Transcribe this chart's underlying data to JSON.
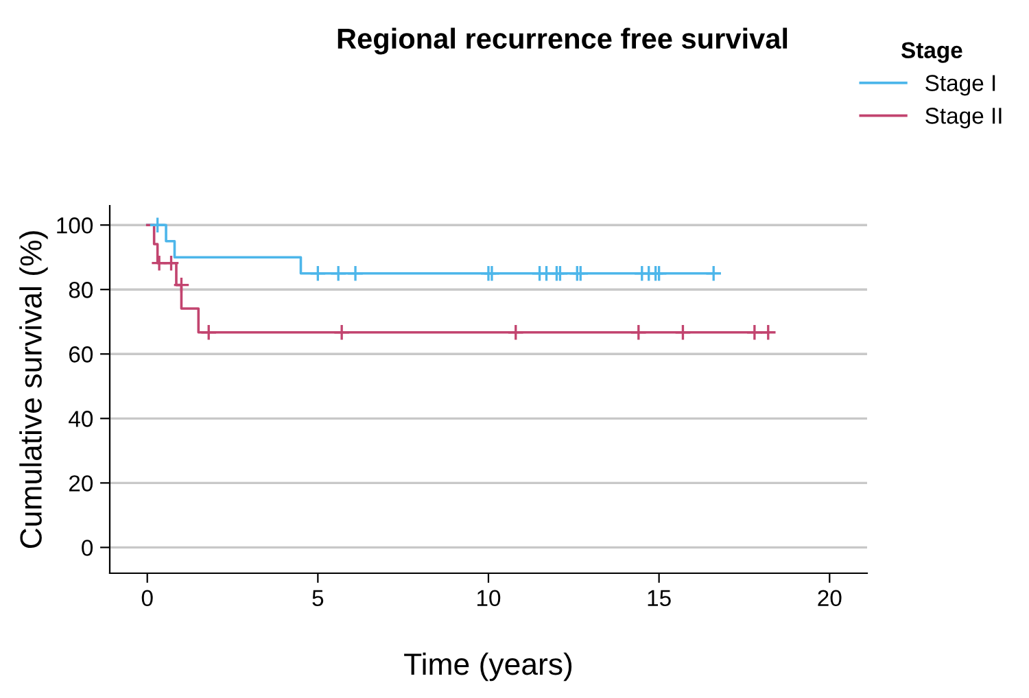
{
  "chart_data": {
    "type": "step",
    "title": "Regional recurrence free survival",
    "xlabel": "Time (years)",
    "ylabel": "Cumulative survival (%)",
    "legend_title": "Stage",
    "legend": "top right",
    "grid": "y",
    "xlim": [
      -1.1,
      21.1
    ],
    "ylim": [
      -8,
      106
    ],
    "xticks": [
      0,
      5,
      10,
      15,
      20
    ],
    "yticks": [
      0,
      20,
      40,
      60,
      80,
      100
    ],
    "series": [
      {
        "name": "Stage I",
        "color": "#4db6ea",
        "x": [
          0,
          0.55,
          0.8,
          4.5,
          16.6
        ],
        "values": [
          100,
          95,
          90,
          85,
          85
        ]
      },
      {
        "name": "Stage II",
        "color": "#c2446f",
        "x": [
          0,
          0.2,
          0.3,
          0.85,
          1.0,
          1.5,
          18.2
        ],
        "values": [
          100,
          94.1,
          88.2,
          81.4,
          74.1,
          66.7,
          66.7
        ]
      },
      {
        "type": "scatter",
        "marker": "cross",
        "color": "#4db6ea",
        "x": [
          0.3,
          5.0,
          5.6,
          6.1,
          10.0,
          10.1,
          11.5,
          11.7,
          12.0,
          12.1,
          12.6,
          12.7,
          14.5,
          14.7,
          14.9,
          15.0,
          16.6
        ],
        "values": [
          100,
          85,
          85,
          85,
          85,
          85,
          85,
          85,
          85,
          85,
          85,
          85,
          85,
          85,
          85,
          85,
          85
        ]
      },
      {
        "type": "scatter",
        "marker": "cross",
        "color": "#c2446f",
        "x": [
          0.35,
          0.7,
          1.0,
          1.8,
          5.7,
          10.8,
          14.4,
          15.7,
          17.8,
          18.2
        ],
        "values": [
          88.2,
          88.2,
          81.4,
          66.7,
          66.7,
          66.7,
          66.7,
          66.7,
          66.7,
          66.7
        ]
      }
    ]
  }
}
